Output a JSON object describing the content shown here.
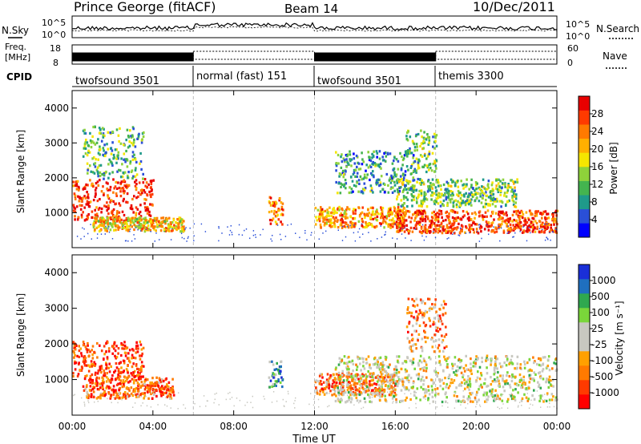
{
  "header": {
    "title": "Prince George (fitACF)",
    "beam": "Beam 14",
    "date": "10/Dec/2011"
  },
  "noise_panel": {
    "left_label": "N.Sky",
    "left_ticks": [
      "10^5",
      "10^0"
    ],
    "right_label": "N.Search",
    "right_ticks": [
      "10^5",
      "10^0"
    ]
  },
  "freq_panel": {
    "left_label_1": "Freq.",
    "left_label_2": "[MHz]",
    "left_ticks": [
      "18",
      "8"
    ],
    "right_label": "Nave",
    "right_ticks": [
      "60",
      "0"
    ]
  },
  "cpid": {
    "label": "CPID",
    "segments": [
      {
        "label": "twofsound 3501",
        "start_hour": 0,
        "end_hour": 6
      },
      {
        "label": "normal (fast) 151",
        "start_hour": 6,
        "end_hour": 12
      },
      {
        "label": "twofsound 3501",
        "start_hour": 12,
        "end_hour": 18
      },
      {
        "label": "themis 3300",
        "start_hour": 18,
        "end_hour": 24
      }
    ]
  },
  "chart_data": [
    {
      "type": "heatmap",
      "name": "power",
      "ylabel": "Slant Range [km]",
      "colorbar_label": "Power [dB]",
      "colorbar_ticks": [
        "28",
        "24",
        "20",
        "16",
        "12",
        "8",
        "4"
      ],
      "colorbar_colors": [
        "#0000ff",
        "#2a4fd8",
        "#1f9a8a",
        "#44b44f",
        "#8ed23a",
        "#f5e600",
        "#ffb000",
        "#ff7a00",
        "#ff3a00",
        "#e80000"
      ],
      "ylim": [
        0,
        4500
      ],
      "yticks": [
        1000,
        2000,
        3000,
        4000
      ],
      "ytick_labels": [
        "1000",
        "2000",
        "3000",
        "4000"
      ],
      "features": [
        {
          "t0": 0.0,
          "t1": 4.0,
          "r0": 800,
          "r1": 2000,
          "level": 0.9
        },
        {
          "t0": 0.5,
          "t1": 3.5,
          "r0": 2000,
          "r1": 3500,
          "level": 0.35
        },
        {
          "t0": 1.0,
          "t1": 5.5,
          "r0": 500,
          "r1": 900,
          "level": 0.6
        },
        {
          "t0": 9.7,
          "t1": 10.4,
          "r0": 700,
          "r1": 1500,
          "level": 0.75
        },
        {
          "t0": 12.0,
          "t1": 16.5,
          "r0": 600,
          "r1": 1200,
          "level": 0.7
        },
        {
          "t0": 13.0,
          "t1": 17.0,
          "r0": 1600,
          "r1": 2800,
          "level": 0.3
        },
        {
          "t0": 16.5,
          "t1": 18.0,
          "r0": 2200,
          "r1": 3400,
          "level": 0.4
        },
        {
          "t0": 16.0,
          "t1": 24.0,
          "r0": 450,
          "r1": 1100,
          "level": 0.85
        },
        {
          "t0": 16.0,
          "t1": 22.0,
          "r0": 1200,
          "r1": 2000,
          "level": 0.4
        }
      ]
    },
    {
      "type": "heatmap",
      "name": "velocity",
      "ylabel": "Slant Range [km]",
      "colorbar_label": "Velocity [m s⁻¹]",
      "colorbar_ticks": [
        "1000",
        "500",
        "100",
        "25",
        "-25",
        "-100",
        "-500",
        "-1000"
      ],
      "colorbar_colors": [
        "#ff0000",
        "#ff3a00",
        "#ff7a00",
        "#ffa000",
        "#c8c8c0",
        "#c8c8c0",
        "#7ad63a",
        "#2fa84f",
        "#1f6fbf",
        "#1a2fd8"
      ],
      "ylim": [
        0,
        4500
      ],
      "yticks": [
        1000,
        2000,
        3000,
        4000
      ],
      "ytick_labels": [
        "1000",
        "2000",
        "3000",
        "4000"
      ],
      "xlabel": "Time UT",
      "xticks": [
        "00:00",
        "04:00",
        "08:00",
        "12:00",
        "16:00",
        "20:00",
        "00:00"
      ],
      "xlim": [
        0,
        24
      ],
      "features": [
        {
          "t0": 0.0,
          "t1": 3.5,
          "r0": 1100,
          "r1": 2100,
          "level": 0.15
        },
        {
          "t0": 0.5,
          "t1": 5.0,
          "r0": 500,
          "r1": 1100,
          "level": 0.2
        },
        {
          "t0": 9.7,
          "t1": 10.4,
          "r0": 800,
          "r1": 1600,
          "level": 0.75
        },
        {
          "t0": 12.0,
          "t1": 16.0,
          "r0": 600,
          "r1": 1200,
          "level": 0.25
        },
        {
          "t0": 13.0,
          "t1": 24.0,
          "r0": 400,
          "r1": 1700,
          "level": 0.5
        },
        {
          "t0": 16.5,
          "t1": 18.5,
          "r0": 1800,
          "r1": 3300,
          "level": 0.3
        }
      ]
    }
  ]
}
